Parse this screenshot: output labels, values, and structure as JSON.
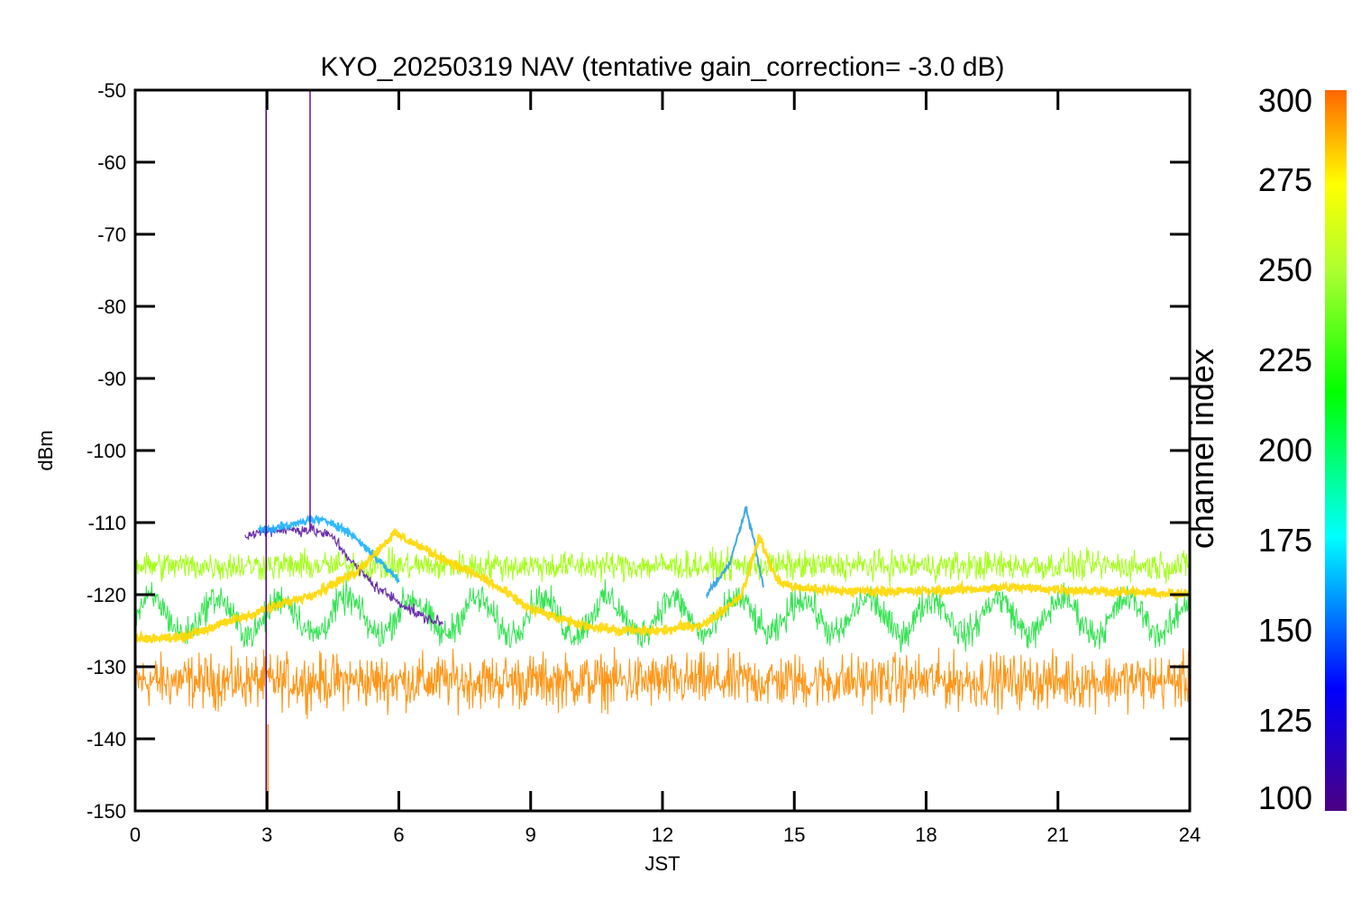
{
  "chart_data": {
    "type": "line",
    "title": "KYO_20250319 NAV (tentative gain_correction= -3.0 dB)",
    "xlabel": "JST",
    "ylabel": "dBm",
    "xlim": [
      0,
      24
    ],
    "ylim": [
      -150,
      -50
    ],
    "x_ticks": [
      0,
      3,
      6,
      9,
      12,
      15,
      18,
      21,
      24
    ],
    "y_ticks": [
      -50,
      -60,
      -70,
      -80,
      -90,
      -100,
      -110,
      -120,
      -130,
      -140,
      -150
    ],
    "colorbar": {
      "label": "channel index",
      "range": [
        100,
        300
      ],
      "ticks": [
        100,
        125,
        150,
        175,
        200,
        225,
        250,
        275,
        300
      ],
      "colors": [
        "#4b0082",
        "#0000ff",
        "#00ffff",
        "#00ff00",
        "#adff2f",
        "#ffff00",
        "#ff6600"
      ]
    },
    "series": [
      {
        "channel": 110,
        "color": "#5a1aa0",
        "x": [
          2.5,
          3.0,
          3.5,
          4.0,
          4.5,
          5.0,
          5.5,
          6.0,
          6.5,
          7.0
        ],
        "y": [
          -112,
          -111,
          -111,
          -111,
          -112,
          -116,
          -119,
          -121,
          -123,
          -124
        ]
      },
      {
        "channel": 170,
        "color": "#1ab0ff",
        "x": [
          2.8,
          3.5,
          4.0,
          4.5,
          5.0,
          5.5,
          6.0
        ],
        "y": [
          -111,
          -110.5,
          -109.5,
          -110,
          -112,
          -115,
          -118
        ]
      },
      {
        "channel": 275,
        "color": "#ffd700",
        "x": [
          0,
          1,
          2,
          3,
          4,
          5,
          5.9,
          7,
          8,
          9,
          10,
          11,
          12,
          13,
          13.8,
          14.2,
          14.6,
          15,
          16,
          18,
          20,
          22,
          24
        ],
        "y": [
          -126,
          -126,
          -124,
          -122,
          -120,
          -117,
          -111.5,
          -115,
          -118,
          -122,
          -124,
          -125,
          -125,
          -124,
          -120,
          -112,
          -118,
          -119,
          -119.5,
          -119.5,
          -119,
          -119.5,
          -120
        ]
      },
      {
        "channel": 165,
        "color": "#2aa0e0",
        "x": [
          13.0,
          13.5,
          13.9,
          14.1,
          14.3
        ],
        "y": [
          -120,
          -116,
          -108,
          -113,
          -119
        ]
      },
      {
        "channel": 255,
        "color": "#9aff00",
        "x": [
          0,
          24
        ],
        "y": [
          -116,
          -116
        ]
      },
      {
        "channel": 225,
        "color": "#20e040",
        "x": [
          0,
          24
        ],
        "y": [
          -123,
          -123
        ]
      },
      {
        "channel": 290,
        "color": "#ff8c00",
        "x": [
          0,
          24
        ],
        "y": [
          -132,
          -132
        ]
      }
    ],
    "spikes": [
      {
        "x": 2.98,
        "color": "#4b0082",
        "y": [
          -150,
          -50
        ]
      },
      {
        "x": 3.02,
        "color": "#ff8c00",
        "y": [
          -150,
          -138
        ]
      },
      {
        "x": 3.98,
        "color": "#6a0dad",
        "y": [
          -111,
          -50
        ]
      }
    ]
  }
}
